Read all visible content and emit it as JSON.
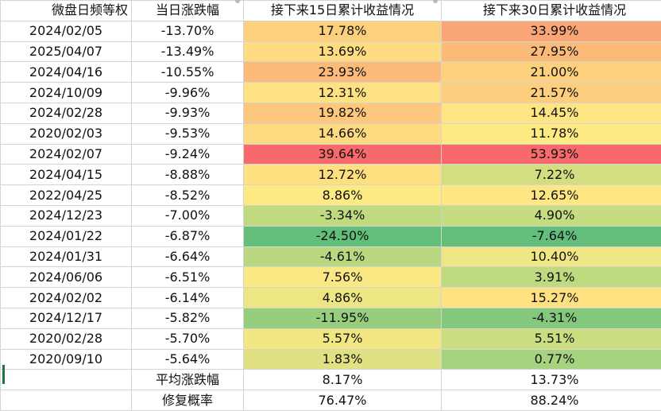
{
  "headers": {
    "date": "微盘日频等权",
    "change": "当日涨跌幅",
    "ret15": "接下来15日累计收益情况",
    "ret30": "接下来30日累计收益情况"
  },
  "rows": [
    {
      "date": "2024/02/05",
      "change": "-13.70%",
      "ret15": "17.78%",
      "ret30": "33.99%",
      "c15": "#fdd07e",
      "c30": "#fba676"
    },
    {
      "date": "2025/04/07",
      "change": "-13.49%",
      "ret15": "13.69%",
      "ret30": "27.95%",
      "c15": "#fedd81",
      "c30": "#fcba79"
    },
    {
      "date": "2024/04/16",
      "change": "-10.55%",
      "ret15": "23.93%",
      "ret30": "21.00%",
      "c15": "#fcbb7b",
      "c30": "#fdd07e"
    },
    {
      "date": "2024/10/09",
      "change": "-9.96%",
      "ret15": "12.31%",
      "ret30": "21.57%",
      "c15": "#fee182",
      "c30": "#fdce7d"
    },
    {
      "date": "2024/02/28",
      "change": "-9.93%",
      "ret15": "19.82%",
      "ret30": "14.45%",
      "c15": "#fdc77d",
      "c30": "#fee482"
    },
    {
      "date": "2020/02/03",
      "change": "-9.53%",
      "ret15": "14.66%",
      "ret30": "11.78%",
      "c15": "#feda80",
      "c30": "#feea83"
    },
    {
      "date": "2024/02/07",
      "change": "-9.24%",
      "ret15": "39.64%",
      "ret30": "53.93%",
      "c15": "#f8696b",
      "c30": "#f8696b"
    },
    {
      "date": "2024/04/15",
      "change": "-8.88%",
      "ret15": "12.72%",
      "ret30": "7.22%",
      "c15": "#fee081",
      "c30": "#d3de81"
    },
    {
      "date": "2022/04/25",
      "change": "-8.52%",
      "ret15": "8.86%",
      "ret30": "12.65%",
      "c15": "#feea83",
      "c30": "#fee782"
    },
    {
      "date": "2024/12/23",
      "change": "-7.00%",
      "ret15": "-3.34%",
      "ret30": "4.90%",
      "c15": "#c0da80",
      "c30": "#c6dc80"
    },
    {
      "date": "2024/01/22",
      "change": "-6.87%",
      "ret15": "-24.50%",
      "ret30": "-7.64%",
      "c15": "#63be7b",
      "c30": "#63be7b"
    },
    {
      "date": "2024/01/31",
      "change": "-6.64%",
      "ret15": "-4.61%",
      "ret30": "10.40%",
      "c15": "#bad880",
      "c30": "#f0e683"
    },
    {
      "date": "2024/06/06",
      "change": "-6.51%",
      "ret15": "7.56%",
      "ret30": "3.91%",
      "c15": "#f9e883",
      "c30": "#c0da80"
    },
    {
      "date": "2024/02/02",
      "change": "-6.14%",
      "ret15": "4.86%",
      "ret30": "15.27%",
      "c15": "#eee583",
      "c30": "#fee282"
    },
    {
      "date": "2024/12/17",
      "change": "-5.82%",
      "ret15": "-11.95%",
      "ret30": "-4.31%",
      "c15": "#97ce7e",
      "c30": "#83c87d"
    },
    {
      "date": "2020/02/28",
      "change": "-5.70%",
      "ret15": "5.57%",
      "ret30": "5.51%",
      "c15": "#f2e683",
      "c30": "#cadd81"
    },
    {
      "date": "2020/09/10",
      "change": "-5.64%",
      "ret15": "1.83%",
      "ret30": "0.77%",
      "c15": "#dfe182",
      "c30": "#a6d37f"
    }
  ],
  "summary": [
    {
      "label": "平均涨跌幅",
      "ret15": "8.17%",
      "ret30": "13.73%"
    },
    {
      "label": "修复概率",
      "ret15": "76.47%",
      "ret30": "88.24%"
    }
  ]
}
